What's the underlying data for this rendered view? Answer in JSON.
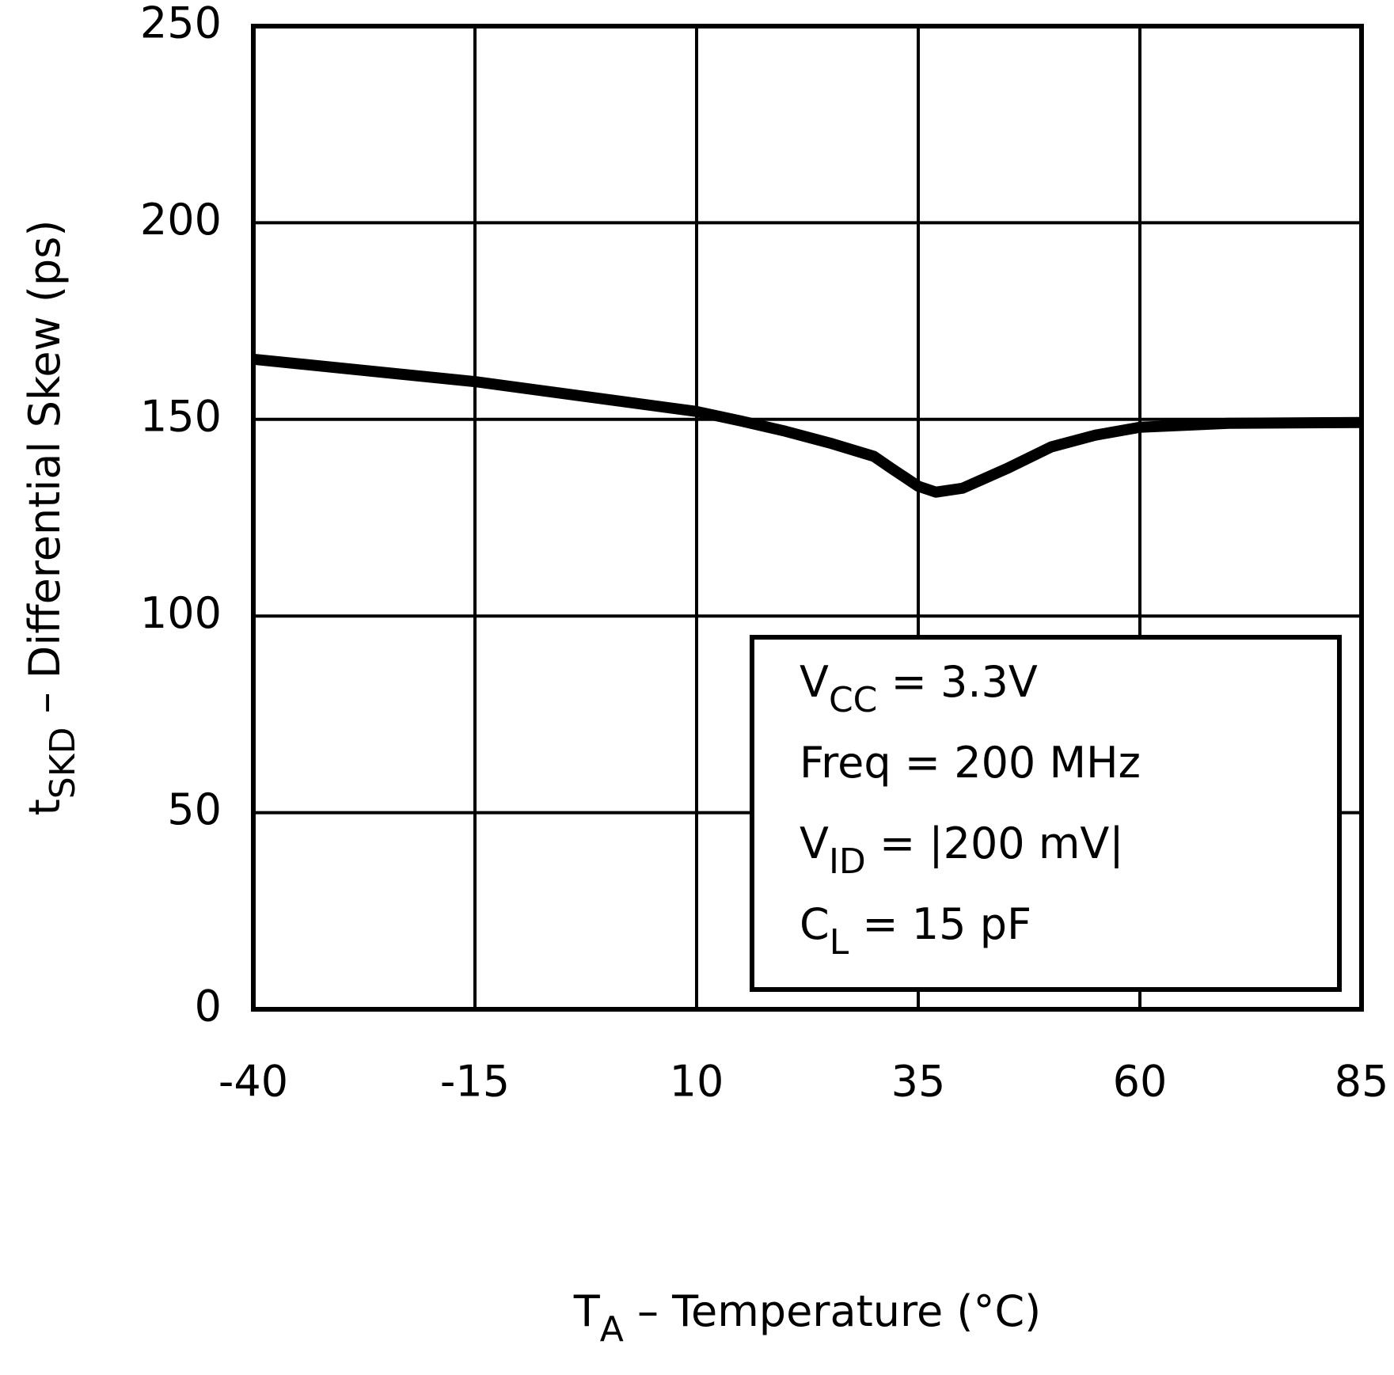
{
  "chart_data": {
    "type": "line",
    "x_label": {
      "base": "T",
      "sub": "A",
      "rest": " – Temperature (°C)"
    },
    "y_label": {
      "base": "t",
      "sub": "SKD",
      "rest": " – Differential Skew (ps)"
    },
    "x": [
      -40,
      -15,
      10,
      15,
      20,
      25,
      30,
      32,
      35,
      37,
      40,
      45,
      50,
      55,
      60,
      70,
      85
    ],
    "series": [
      {
        "color": "#000000",
        "values": [
          165.3,
          159.6,
          152,
          149.6,
          147,
          144,
          140.6,
          137.5,
          133,
          131.5,
          132.5,
          137.5,
          143,
          146,
          148,
          149,
          149.2
        ]
      }
    ],
    "xlim": [
      -40,
      85
    ],
    "xticks": [
      -40,
      -15,
      10,
      35,
      60,
      85
    ],
    "ylim": [
      0,
      250
    ],
    "yticks": [
      0,
      50,
      100,
      150,
      200,
      250
    ],
    "grid": true,
    "annotation": [
      {
        "base": "V",
        "sub": "CC",
        "rest": " = 3.3V"
      },
      {
        "base": "Freq = 200 MHz"
      },
      {
        "base": "V",
        "sub": "ID",
        "rest": " = |200 mV|"
      },
      {
        "base": "C",
        "sub": "L",
        "rest": " = 15 pF"
      }
    ]
  }
}
